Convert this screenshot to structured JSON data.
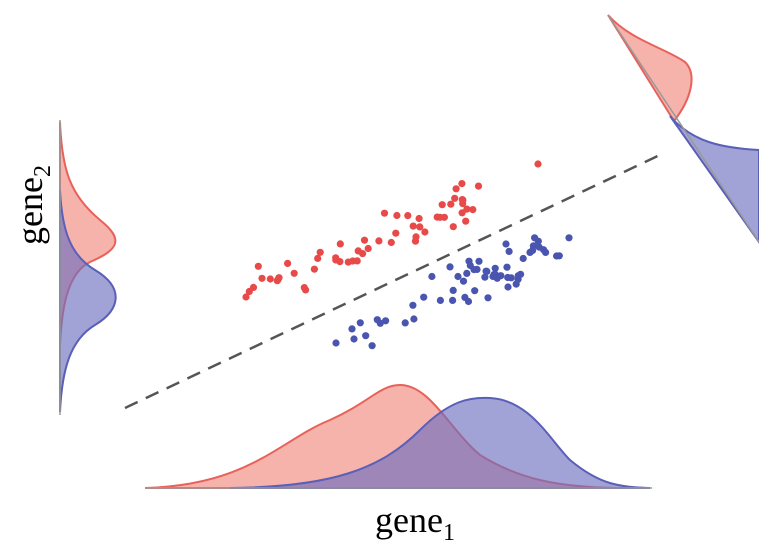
{
  "x_axis_label": {
    "text": "gene",
    "subscript": "1"
  },
  "y_axis_label": {
    "text": "gene",
    "subscript": "2"
  }
}
